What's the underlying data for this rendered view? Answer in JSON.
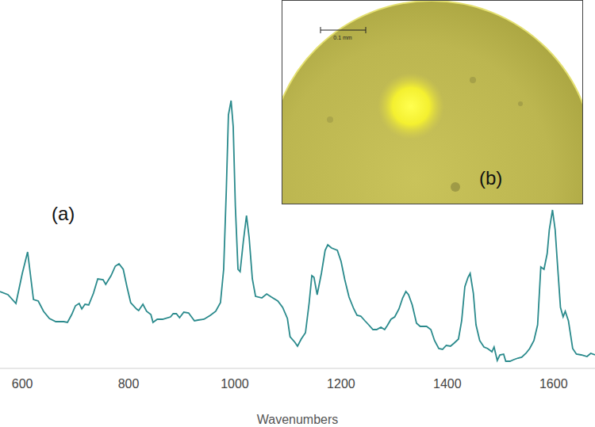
{
  "chart_data": {
    "type": "line",
    "x_label": "Wavenumbers",
    "annotations": [
      "(a)",
      "(b)",
      "0.1 mm"
    ],
    "color": "#2a8a8c",
    "grid": false,
    "tick_labels": "x",
    "xlim": [
      558,
      1678
    ],
    "xticks": [
      600,
      800,
      1000,
      1200,
      1400,
      1600
    ],
    "ylim": [
      0,
      350
    ],
    "x": [
      558,
      573,
      588,
      600,
      610,
      621,
      630,
      640,
      651,
      663,
      678,
      685,
      693,
      700,
      707,
      712,
      718,
      725,
      734,
      742,
      752,
      757,
      767,
      775,
      782,
      790,
      797,
      804,
      815,
      819,
      827,
      834,
      842,
      846,
      854,
      864,
      879,
      884,
      890,
      896,
      904,
      913,
      924,
      931,
      942,
      954,
      964,
      973,
      979,
      984,
      988,
      993,
      997,
      1001,
      1006,
      1010,
      1016,
      1022,
      1027,
      1033,
      1039,
      1051,
      1060,
      1069,
      1081,
      1090,
      1099,
      1104,
      1113,
      1118,
      1125,
      1133,
      1140,
      1145,
      1149,
      1155,
      1163,
      1170,
      1175,
      1182,
      1193,
      1200,
      1207,
      1215,
      1224,
      1230,
      1237,
      1245,
      1252,
      1260,
      1267,
      1275,
      1282,
      1287,
      1294,
      1301,
      1309,
      1316,
      1322,
      1327,
      1334,
      1342,
      1349,
      1361,
      1369,
      1376,
      1384,
      1391,
      1398,
      1406,
      1413,
      1421,
      1427,
      1433,
      1439,
      1443,
      1449,
      1454,
      1461,
      1469,
      1476,
      1484,
      1488,
      1494,
      1499,
      1506,
      1510,
      1518,
      1525,
      1533,
      1540,
      1548,
      1555,
      1563,
      1570,
      1576,
      1582,
      1588,
      1592,
      1598,
      1603,
      1607,
      1613,
      1618,
      1622,
      1628,
      1636,
      1643,
      1652,
      1663,
      1670,
      1678
    ],
    "values": [
      97,
      93,
      82,
      120,
      147,
      87,
      85,
      72,
      63,
      59,
      59,
      58,
      68,
      79,
      82,
      75,
      81,
      80,
      95,
      113,
      112,
      106,
      117,
      129,
      132,
      125,
      103,
      83,
      75,
      73,
      81,
      72,
      68,
      58,
      62,
      62,
      65,
      69,
      69,
      64,
      71,
      70,
      60,
      61,
      62,
      67,
      72,
      83,
      125,
      225,
      320,
      338,
      305,
      205,
      125,
      122,
      160,
      193,
      165,
      113,
      91,
      89,
      94,
      90,
      85,
      77,
      63,
      40,
      33,
      28,
      37,
      45,
      83,
      117,
      115,
      93,
      120,
      149,
      156,
      152,
      149,
      135,
      112,
      90,
      75,
      67,
      66,
      60,
      55,
      49,
      49,
      52,
      49,
      54,
      62,
      65,
      75,
      89,
      97,
      93,
      80,
      57,
      53,
      53,
      49,
      35,
      25,
      24,
      29,
      28,
      32,
      37,
      60,
      103,
      115,
      120,
      95,
      55,
      35,
      27,
      25,
      21,
      27,
      10,
      17,
      18,
      9,
      9,
      11,
      13,
      14,
      19,
      25,
      35,
      55,
      128,
      125,
      145,
      175,
      200,
      175,
      135,
      77,
      65,
      72,
      60,
      25,
      18,
      17,
      15,
      19,
      17
    ]
  }
}
